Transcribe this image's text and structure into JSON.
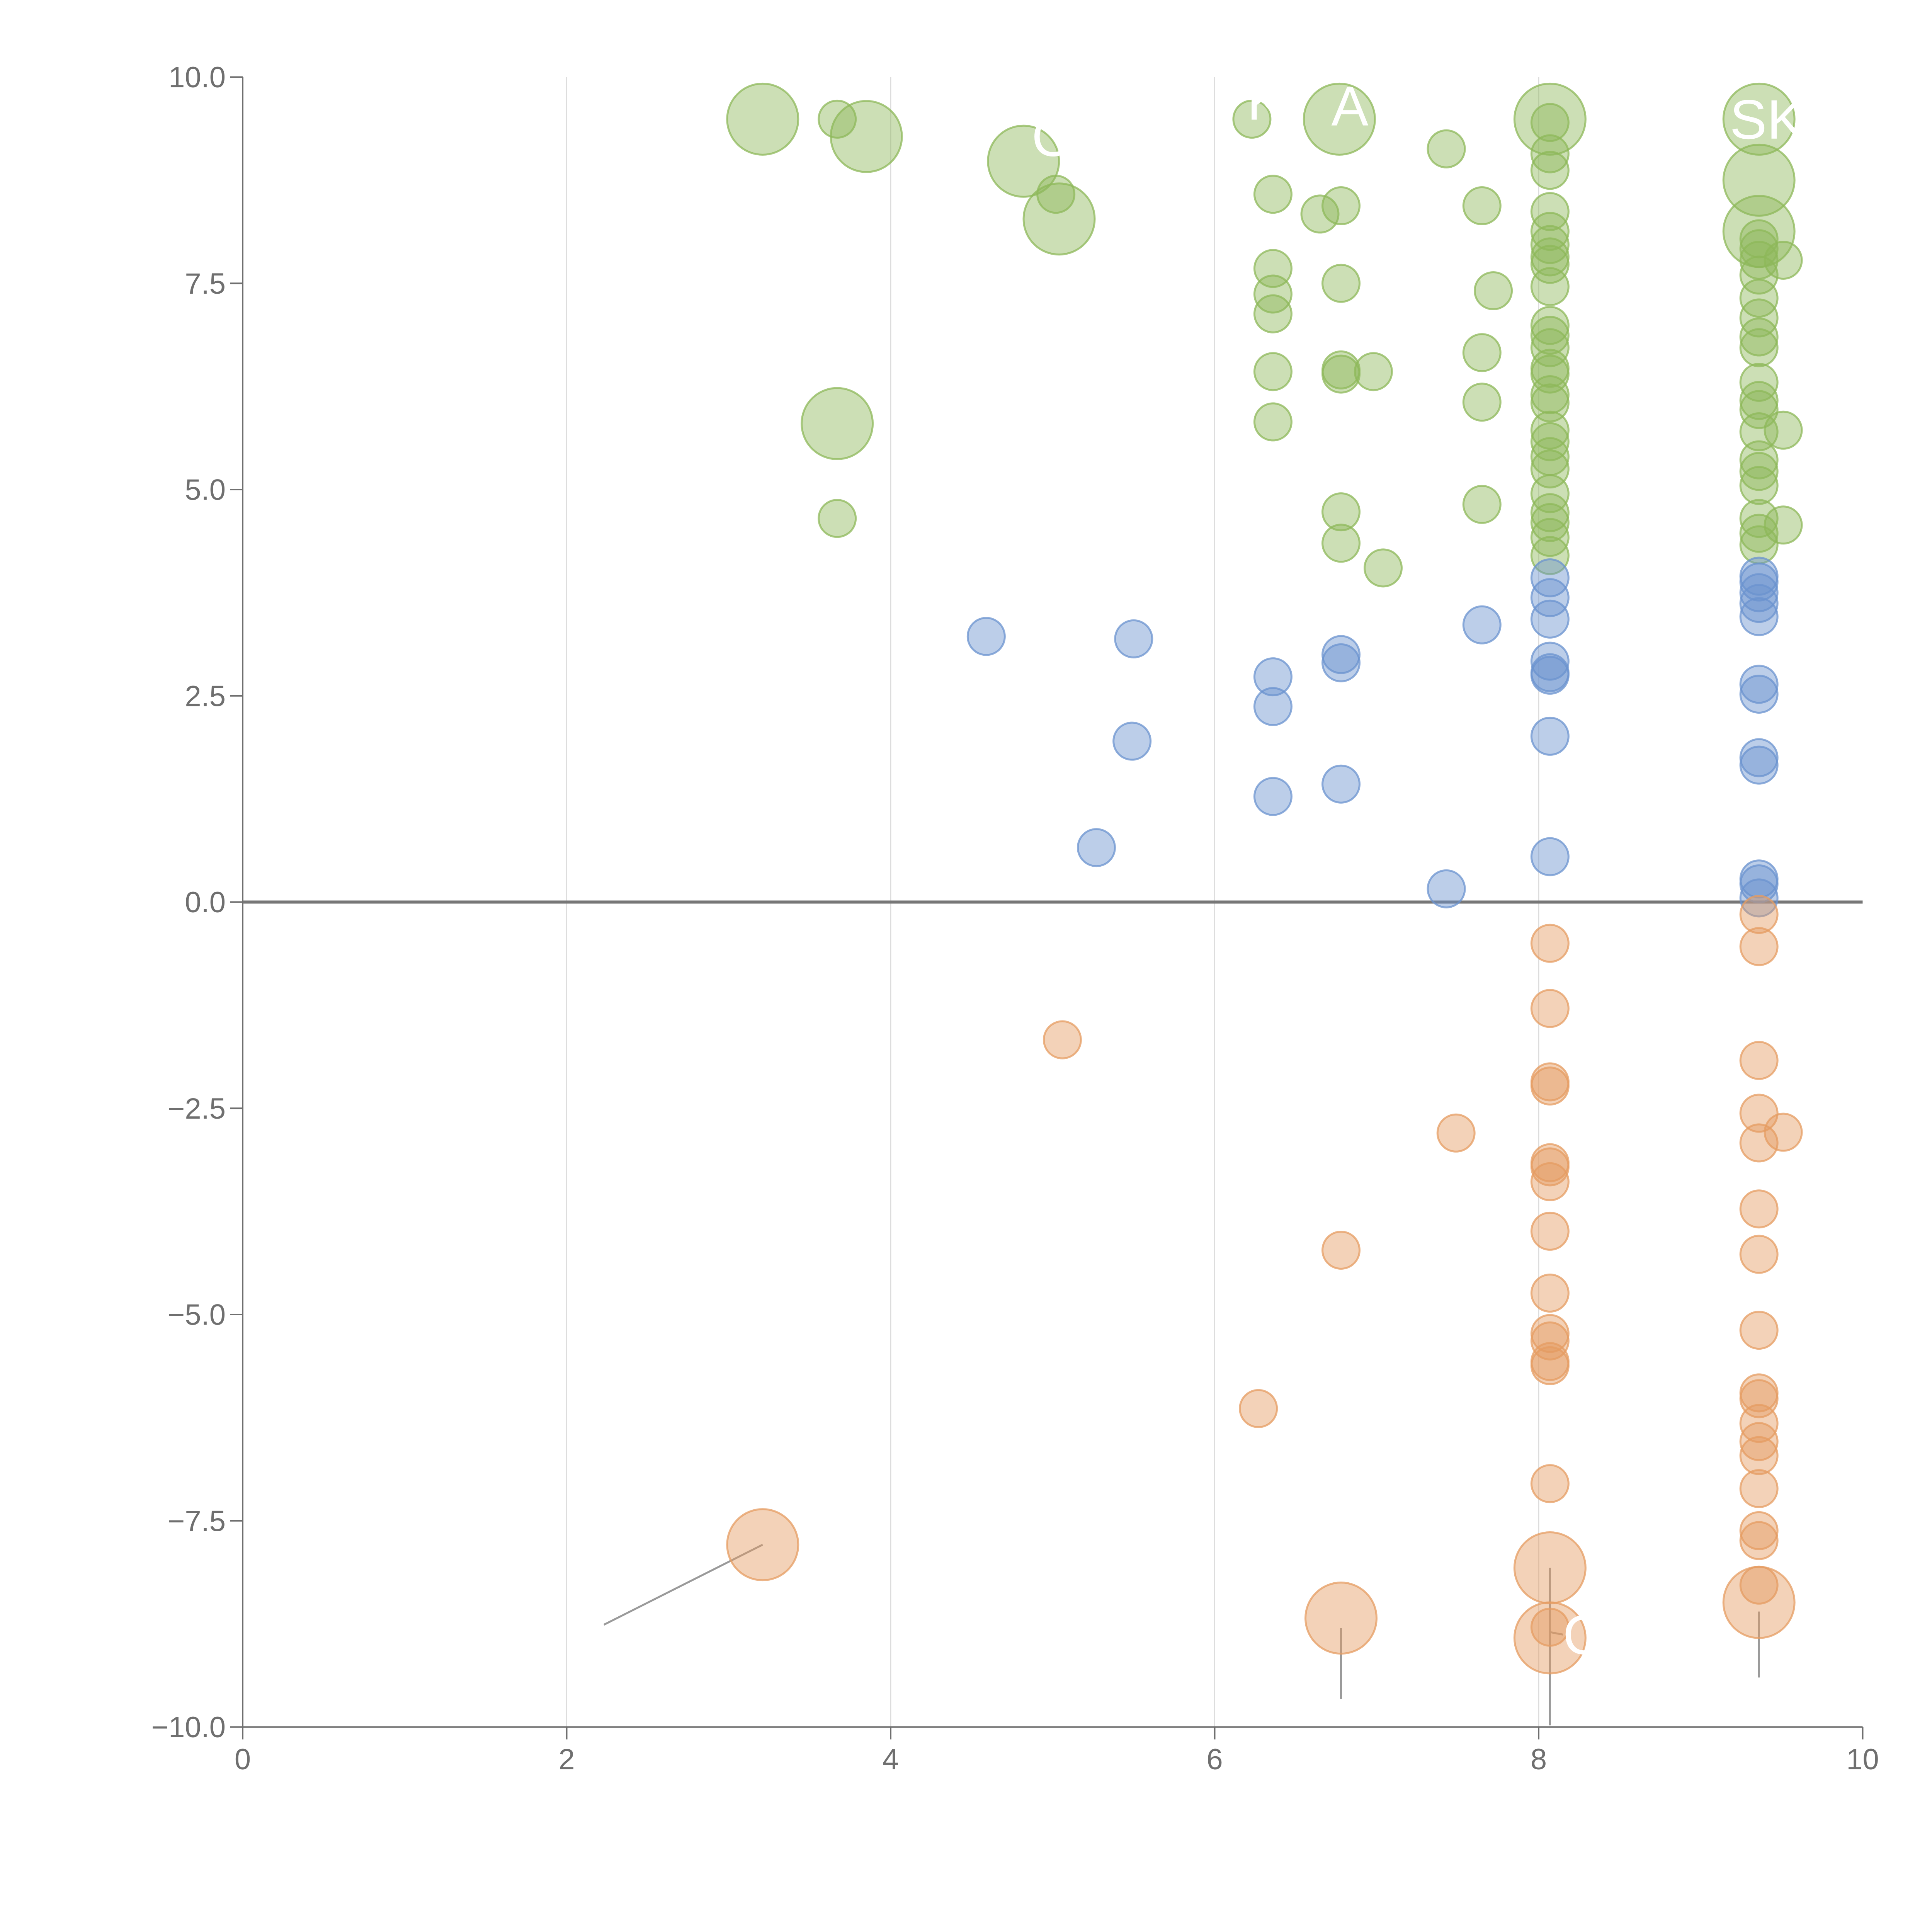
{
  "chart_data": {
    "type": "scatter",
    "title": "",
    "xlabel": "",
    "ylabel": "",
    "xlim": [
      0,
      10
    ],
    "ylim": [
      -10,
      10
    ],
    "x_ticks": [
      0,
      2,
      4,
      6,
      8,
      10
    ],
    "x_tick_labels": [
      "0",
      "2",
      "4",
      "6",
      "8",
      "10"
    ],
    "y_ticks": [
      10,
      7.5,
      5,
      2.5,
      0,
      -2.5,
      -5,
      -7.5,
      -10
    ],
    "y_tick_labels": [
      "10.0",
      "7.5",
      "5.0",
      "2.5",
      "0.0",
      "−2.5",
      "−5.0",
      "−7.5",
      "−10.0"
    ],
    "x_grid_at": [
      2,
      4,
      6,
      8
    ],
    "zero_line": true,
    "legend": "none",
    "colors": {
      "high": "#8db85a",
      "mid": "#6b93cf",
      "low": "#e59c62",
      "grid": "#dddddd",
      "axis": "#6f6f6f",
      "zero_line": "#777777",
      "leader": "#9a9a9a",
      "label": "#ffffff"
    },
    "series": [
      {
        "name": "high",
        "color_key": "high",
        "points": [
          [
            3.21,
            9.49,
            2
          ],
          [
            3.67,
            9.49,
            1
          ],
          [
            3.85,
            9.28,
            2
          ],
          [
            4.82,
            8.98,
            2
          ],
          [
            5.02,
            8.58,
            1
          ],
          [
            5.04,
            8.28,
            2
          ],
          [
            3.67,
            5.8,
            2
          ],
          [
            3.67,
            4.65,
            1
          ],
          [
            6.23,
            9.49,
            1
          ],
          [
            6.77,
            9.49,
            2
          ],
          [
            6.36,
            8.58,
            1
          ],
          [
            6.65,
            8.34,
            1
          ],
          [
            6.78,
            8.44,
            1
          ],
          [
            6.36,
            7.68,
            1
          ],
          [
            6.36,
            7.37,
            1
          ],
          [
            6.36,
            7.13,
            1
          ],
          [
            6.78,
            7.5,
            1
          ],
          [
            6.36,
            6.43,
            1
          ],
          [
            6.78,
            6.4,
            1
          ],
          [
            6.78,
            6.45,
            1
          ],
          [
            6.98,
            6.43,
            1
          ],
          [
            6.36,
            5.82,
            1
          ],
          [
            6.78,
            4.73,
            1
          ],
          [
            6.78,
            4.35,
            1
          ],
          [
            7.04,
            4.05,
            1
          ],
          [
            7.43,
            9.13,
            1
          ],
          [
            7.65,
            8.44,
            1
          ],
          [
            7.72,
            7.41,
            1
          ],
          [
            7.65,
            6.66,
            1
          ],
          [
            7.65,
            6.06,
            1
          ],
          [
            7.65,
            4.82,
            1
          ],
          [
            8.07,
            9.49,
            2
          ],
          [
            8.07,
            9.45,
            1
          ],
          [
            8.07,
            9.07,
            1
          ],
          [
            8.07,
            8.87,
            1
          ],
          [
            8.07,
            8.37,
            1
          ],
          [
            8.07,
            8.13,
            1
          ],
          [
            8.07,
            7.97,
            1
          ],
          [
            8.07,
            7.82,
            1
          ],
          [
            8.07,
            7.73,
            1
          ],
          [
            8.07,
            7.46,
            1
          ],
          [
            8.07,
            6.99,
            1
          ],
          [
            8.07,
            6.87,
            1
          ],
          [
            8.07,
            6.72,
            1
          ],
          [
            8.07,
            6.47,
            1
          ],
          [
            8.07,
            6.4,
            1
          ],
          [
            8.07,
            6.15,
            1
          ],
          [
            8.07,
            6.05,
            1
          ],
          [
            8.07,
            5.72,
            1
          ],
          [
            8.07,
            5.58,
            1
          ],
          [
            8.07,
            5.4,
            1
          ],
          [
            8.07,
            5.25,
            1
          ],
          [
            8.07,
            4.95,
            1
          ],
          [
            8.07,
            4.72,
            1
          ],
          [
            8.07,
            4.6,
            1
          ],
          [
            8.07,
            4.42,
            1
          ],
          [
            8.07,
            4.2,
            1
          ],
          [
            9.36,
            9.49,
            2
          ],
          [
            9.36,
            8.75,
            2
          ],
          [
            9.36,
            8.13,
            2
          ],
          [
            9.36,
            8.04,
            1
          ],
          [
            9.36,
            7.92,
            1
          ],
          [
            9.36,
            7.78,
            1
          ],
          [
            9.36,
            7.6,
            1
          ],
          [
            9.36,
            7.32,
            1
          ],
          [
            9.36,
            7.08,
            1
          ],
          [
            9.36,
            6.85,
            1
          ],
          [
            9.36,
            6.72,
            1
          ],
          [
            9.36,
            6.3,
            1
          ],
          [
            9.36,
            6.08,
            1
          ],
          [
            9.36,
            5.97,
            1
          ],
          [
            9.36,
            5.7,
            1
          ],
          [
            9.36,
            5.36,
            1
          ],
          [
            9.36,
            5.22,
            1
          ],
          [
            9.36,
            5.05,
            1
          ],
          [
            9.36,
            4.65,
            1
          ],
          [
            9.36,
            4.47,
            1
          ],
          [
            9.36,
            4.33,
            1
          ],
          [
            9.51,
            7.78,
            1
          ],
          [
            9.51,
            5.72,
            1
          ],
          [
            9.51,
            4.57,
            1
          ]
        ]
      },
      {
        "name": "mid",
        "color_key": "mid",
        "points": [
          [
            4.59,
            3.22,
            1
          ],
          [
            5.5,
            3.19,
            1
          ],
          [
            5.49,
            1.95,
            1
          ],
          [
            5.27,
            0.66,
            1
          ],
          [
            6.36,
            2.73,
            1
          ],
          [
            6.36,
            2.37,
            1
          ],
          [
            6.36,
            1.28,
            1
          ],
          [
            6.78,
            3.0,
            1
          ],
          [
            6.78,
            2.9,
            1
          ],
          [
            6.78,
            1.43,
            1
          ],
          [
            7.43,
            0.16,
            1
          ],
          [
            7.65,
            3.36,
            1
          ],
          [
            8.07,
            3.93,
            1
          ],
          [
            8.07,
            3.69,
            1
          ],
          [
            8.07,
            3.43,
            1
          ],
          [
            8.07,
            2.92,
            1
          ],
          [
            8.07,
            2.78,
            1
          ],
          [
            8.07,
            2.75,
            1
          ],
          [
            8.07,
            2.01,
            1
          ],
          [
            8.07,
            0.55,
            1
          ],
          [
            9.36,
            3.95,
            1
          ],
          [
            9.36,
            3.88,
            1
          ],
          [
            9.36,
            3.75,
            1
          ],
          [
            9.36,
            3.62,
            1
          ],
          [
            9.36,
            3.46,
            1
          ],
          [
            9.36,
            2.64,
            1
          ],
          [
            9.36,
            2.52,
            1
          ],
          [
            9.36,
            1.75,
            1
          ],
          [
            9.36,
            1.66,
            1
          ],
          [
            9.36,
            0.28,
            1
          ],
          [
            9.36,
            0.22,
            1
          ],
          [
            9.36,
            0.05,
            1
          ]
        ]
      },
      {
        "name": "low",
        "color_key": "low",
        "points": [
          [
            5.06,
            -1.67,
            1
          ],
          [
            3.21,
            -7.79,
            2
          ],
          [
            6.27,
            -6.14,
            1
          ],
          [
            6.78,
            -4.22,
            1
          ],
          [
            6.78,
            -8.68,
            2
          ],
          [
            7.49,
            -2.8,
            1
          ],
          [
            8.07,
            -0.5,
            1
          ],
          [
            8.07,
            -1.29,
            1
          ],
          [
            8.07,
            -2.18,
            1
          ],
          [
            8.07,
            -2.23,
            1
          ],
          [
            8.07,
            -3.16,
            1
          ],
          [
            8.07,
            -3.21,
            1
          ],
          [
            8.07,
            -3.39,
            1
          ],
          [
            8.07,
            -3.99,
            1
          ],
          [
            8.07,
            -4.74,
            1
          ],
          [
            8.07,
            -5.23,
            1
          ],
          [
            8.07,
            -5.32,
            1
          ],
          [
            8.07,
            -5.57,
            1
          ],
          [
            8.07,
            -5.62,
            1
          ],
          [
            8.07,
            -7.05,
            1
          ],
          [
            8.07,
            -8.07,
            2
          ],
          [
            8.07,
            -8.92,
            2
          ],
          [
            8.07,
            -8.79,
            1
          ],
          [
            9.36,
            -0.15,
            1
          ],
          [
            9.36,
            -0.54,
            1
          ],
          [
            9.36,
            -1.92,
            1
          ],
          [
            9.36,
            -2.56,
            1
          ],
          [
            9.36,
            -2.92,
            1
          ],
          [
            9.36,
            -3.72,
            1
          ],
          [
            9.36,
            -4.27,
            1
          ],
          [
            9.36,
            -5.19,
            1
          ],
          [
            9.36,
            -5.95,
            1
          ],
          [
            9.36,
            -6.02,
            1
          ],
          [
            9.36,
            -6.32,
            1
          ],
          [
            9.36,
            -6.54,
            1
          ],
          [
            9.36,
            -6.71,
            1
          ],
          [
            9.36,
            -7.11,
            1
          ],
          [
            9.36,
            -7.62,
            1
          ],
          [
            9.36,
            -7.74,
            1
          ],
          [
            9.36,
            -8.28,
            1
          ],
          [
            9.36,
            -8.49,
            2
          ],
          [
            9.51,
            -2.79,
            1
          ]
        ]
      }
    ],
    "annotations": [
      {
        "text": "",
        "point": [
          3.21,
          -7.79
        ],
        "label_at": [
          2.23,
          -8.76
        ]
      },
      {
        "text": "",
        "point": [
          6.78,
          -8.8
        ],
        "label_at": [
          6.78,
          -9.66
        ]
      },
      {
        "text": "",
        "point": [
          8.07,
          -8.07
        ],
        "label_at": [
          8.07,
          -9.98
        ]
      },
      {
        "text": "",
        "point": [
          9.36,
          -8.6
        ],
        "label_at": [
          9.36,
          -9.4
        ]
      },
      {
        "text": "Q",
        "point": [
          8.07,
          -8.85
        ],
        "label_at": [
          8.15,
          -8.88
        ]
      },
      {
        "text": "SK",
        "point": [
          9.36,
          9.49
        ],
        "label_at": [
          9.18,
          9.49
        ]
      },
      {
        "text": "A",
        "point": [
          6.77,
          9.49
        ],
        "label_at": [
          6.72,
          9.65
        ]
      },
      {
        "text": "K",
        "point": [
          6.23,
          9.49
        ],
        "label_at": [
          6.2,
          9.72
        ]
      },
      {
        "text": "C",
        "point": [
          4.82,
          8.98
        ],
        "label_at": [
          4.87,
          9.28
        ]
      },
      {
        "text": "",
        "point": [
          3.85,
          9.28
        ],
        "label_at": [
          3.85,
          9.28
        ]
      },
      {
        "text": "",
        "point": [
          3.21,
          9.49
        ],
        "label_at": [
          3.21,
          9.49
        ]
      },
      {
        "text": "",
        "point": [
          5.04,
          8.28
        ],
        "label_at": [
          4.98,
          8.18
        ]
      },
      {
        "text": "",
        "point": [
          3.67,
          5.8
        ],
        "label_at": [
          3.67,
          5.52
        ]
      },
      {
        "text": "",
        "point": [
          9.36,
          8.75
        ],
        "label_at": [
          9.36,
          8.75
        ]
      },
      {
        "text": "",
        "point": [
          9.36,
          8.13
        ],
        "label_at": [
          9.36,
          8.13
        ]
      },
      {
        "text": "",
        "point": [
          8.07,
          9.49
        ],
        "label_at": [
          8.07,
          9.49
        ]
      }
    ]
  }
}
